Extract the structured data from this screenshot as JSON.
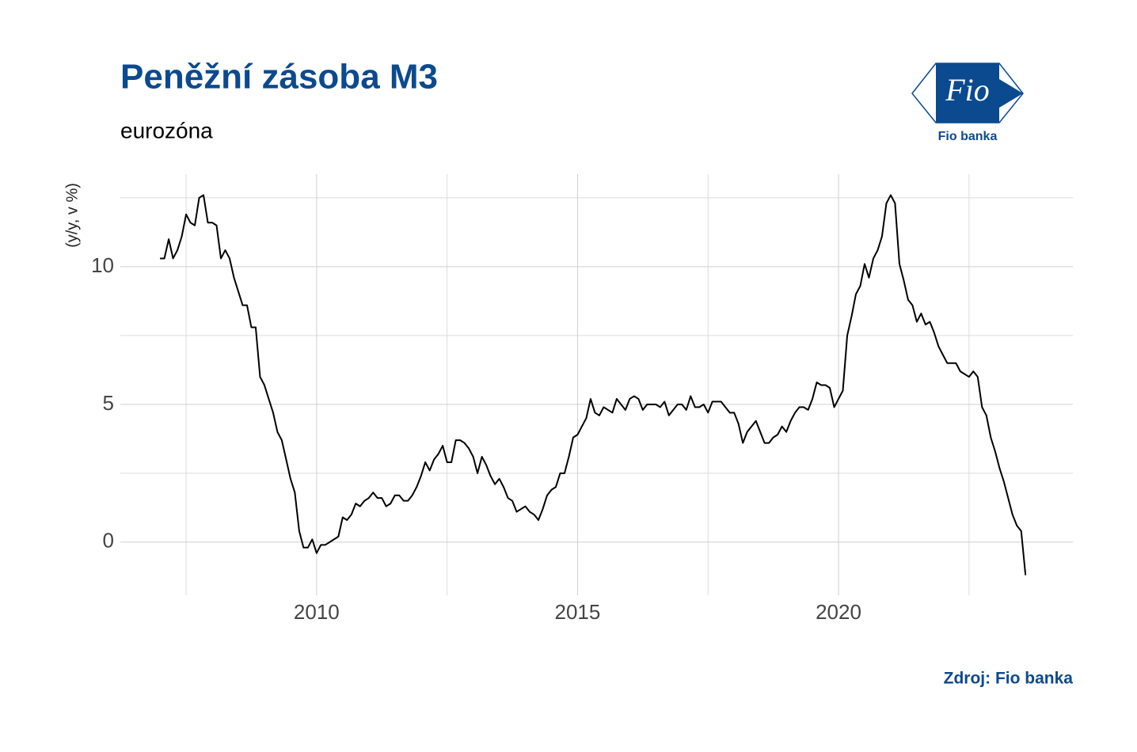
{
  "chart_data": {
    "type": "line",
    "title": "Peněžní zásoba M3",
    "subtitle": "eurozóna",
    "y_label": "(y/y, v %)",
    "source": "Zdroj: Fio banka",
    "logo": {
      "mark": "Fio",
      "name": "Fio banka"
    },
    "color": "#000000",
    "grid": true,
    "xlim": [
      2006.24,
      2024.49
    ],
    "ylim": [
      -1.93,
      13.36
    ],
    "xticks": [
      2010,
      2015,
      2020
    ],
    "yticks": [
      0,
      5,
      10
    ],
    "xminor": [
      2007.5,
      2012.5,
      2017.5,
      2022.5
    ],
    "yminor": [
      2.5,
      7.5,
      12.5
    ],
    "x": [
      2007,
      2007.083,
      2007.167,
      2007.25,
      2007.333,
      2007.417,
      2007.5,
      2007.583,
      2007.667,
      2007.75,
      2007.833,
      2007.917,
      2008,
      2008.083,
      2008.167,
      2008.25,
      2008.333,
      2008.417,
      2008.5,
      2008.583,
      2008.667,
      2008.75,
      2008.833,
      2008.917,
      2009,
      2009.083,
      2009.167,
      2009.25,
      2009.333,
      2009.417,
      2009.5,
      2009.583,
      2009.667,
      2009.75,
      2009.833,
      2009.917,
      2010,
      2010.083,
      2010.167,
      2010.25,
      2010.333,
      2010.417,
      2010.5,
      2010.583,
      2010.667,
      2010.75,
      2010.833,
      2010.917,
      2011,
      2011.083,
      2011.167,
      2011.25,
      2011.333,
      2011.417,
      2011.5,
      2011.583,
      2011.667,
      2011.75,
      2011.833,
      2011.917,
      2012,
      2012.083,
      2012.167,
      2012.25,
      2012.333,
      2012.417,
      2012.5,
      2012.583,
      2012.667,
      2012.75,
      2012.833,
      2012.917,
      2013,
      2013.083,
      2013.167,
      2013.25,
      2013.333,
      2013.417,
      2013.5,
      2013.583,
      2013.667,
      2013.75,
      2013.833,
      2013.917,
      2014,
      2014.083,
      2014.167,
      2014.25,
      2014.333,
      2014.417,
      2014.5,
      2014.583,
      2014.667,
      2014.75,
      2014.833,
      2014.917,
      2015,
      2015.083,
      2015.167,
      2015.25,
      2015.333,
      2015.417,
      2015.5,
      2015.583,
      2015.667,
      2015.75,
      2015.833,
      2015.917,
      2016,
      2016.083,
      2016.167,
      2016.25,
      2016.333,
      2016.417,
      2016.5,
      2016.583,
      2016.667,
      2016.75,
      2016.833,
      2016.917,
      2017,
      2017.083,
      2017.167,
      2017.25,
      2017.333,
      2017.417,
      2017.5,
      2017.583,
      2017.667,
      2017.75,
      2017.833,
      2017.917,
      2018,
      2018.083,
      2018.167,
      2018.25,
      2018.333,
      2018.417,
      2018.5,
      2018.583,
      2018.667,
      2018.75,
      2018.833,
      2018.917,
      2019,
      2019.083,
      2019.167,
      2019.25,
      2019.333,
      2019.417,
      2019.5,
      2019.583,
      2019.667,
      2019.75,
      2019.833,
      2019.917,
      2020,
      2020.083,
      2020.167,
      2020.25,
      2020.333,
      2020.417,
      2020.5,
      2020.583,
      2020.667,
      2020.75,
      2020.833,
      2020.917,
      2021,
      2021.083,
      2021.167,
      2021.25,
      2021.333,
      2021.417,
      2021.5,
      2021.583,
      2021.667,
      2021.75,
      2021.833,
      2021.917,
      2022,
      2022.083,
      2022.167,
      2022.25,
      2022.333,
      2022.417,
      2022.5,
      2022.583,
      2022.667,
      2022.75,
      2022.833,
      2022.917,
      2023,
      2023.083,
      2023.167,
      2023.25,
      2023.333,
      2023.417,
      2023.5,
      2023.583
    ],
    "values": [
      10.3,
      10.3,
      11.0,
      10.3,
      10.6,
      11.1,
      11.9,
      11.6,
      11.5,
      12.5,
      12.6,
      11.6,
      11.6,
      11.5,
      10.3,
      10.6,
      10.3,
      9.6,
      9.1,
      8.6,
      8.6,
      7.8,
      7.8,
      6.0,
      5.7,
      5.2,
      4.7,
      4.0,
      3.7,
      3.0,
      2.3,
      1.8,
      0.4,
      -0.2,
      -0.2,
      0.1,
      -0.4,
      -0.1,
      -0.1,
      0.0,
      0.1,
      0.2,
      0.9,
      0.8,
      1.0,
      1.4,
      1.3,
      1.5,
      1.6,
      1.8,
      1.6,
      1.6,
      1.3,
      1.4,
      1.7,
      1.7,
      1.5,
      1.5,
      1.7,
      2.0,
      2.4,
      2.9,
      2.6,
      3.0,
      3.2,
      3.5,
      2.9,
      2.9,
      3.7,
      3.7,
      3.6,
      3.4,
      3.1,
      2.5,
      3.1,
      2.8,
      2.4,
      2.1,
      2.3,
      2.0,
      1.6,
      1.5,
      1.1,
      1.2,
      1.3,
      1.1,
      1.0,
      0.8,
      1.2,
      1.7,
      1.9,
      2.0,
      2.5,
      2.5,
      3.1,
      3.8,
      3.9,
      4.2,
      4.5,
      5.2,
      4.7,
      4.6,
      4.9,
      4.8,
      4.7,
      5.2,
      5.0,
      4.8,
      5.2,
      5.3,
      5.2,
      4.8,
      5.0,
      5.0,
      5.0,
      4.9,
      5.1,
      4.6,
      4.8,
      5.0,
      5.0,
      4.8,
      5.3,
      4.9,
      4.9,
      5.0,
      4.7,
      5.1,
      5.1,
      5.1,
      4.9,
      4.7,
      4.7,
      4.3,
      3.6,
      4.0,
      4.2,
      4.4,
      4.0,
      3.6,
      3.6,
      3.8,
      3.9,
      4.2,
      4.0,
      4.4,
      4.7,
      4.9,
      4.9,
      4.8,
      5.2,
      5.8,
      5.7,
      5.7,
      5.6,
      4.9,
      5.2,
      5.5,
      7.5,
      8.2,
      9.0,
      9.3,
      10.1,
      9.6,
      10.3,
      10.6,
      11.1,
      12.3,
      12.6,
      12.3,
      10.1,
      9.5,
      8.8,
      8.6,
      8.0,
      8.3,
      7.9,
      8.0,
      7.6,
      7.1,
      6.8,
      6.5,
      6.5,
      6.5,
      6.2,
      6.1,
      6.0,
      6.2,
      6.0,
      4.9,
      4.6,
      3.8,
      3.3,
      2.7,
      2.2,
      1.6,
      1.0,
      0.6,
      0.4,
      -1.2
    ]
  }
}
